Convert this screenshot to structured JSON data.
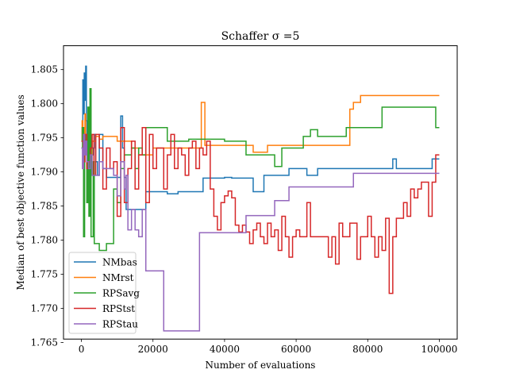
{
  "chart_data": {
    "type": "line",
    "title": "Schaffer σ =5",
    "xlabel": "Number of evaluations",
    "ylabel": "Median of best objective function values",
    "xlim": [
      -5000,
      105000
    ],
    "ylim": [
      1.7655,
      1.8085
    ],
    "xticks": [
      0,
      20000,
      40000,
      60000,
      80000,
      100000
    ],
    "xtick_labels": [
      "0",
      "20000",
      "40000",
      "60000",
      "80000",
      "100000"
    ],
    "yticks": [
      1.765,
      1.77,
      1.775,
      1.78,
      1.785,
      1.79,
      1.795,
      1.8,
      1.805
    ],
    "ytick_labels": [
      "1.765",
      "1.770",
      "1.775",
      "1.780",
      "1.785",
      "1.790",
      "1.795",
      "1.800",
      "1.805"
    ],
    "grid": false,
    "legend": "lower-left",
    "series": [
      {
        "name": "NMbas",
        "color": "#1f77b4",
        "x": [
          0,
          200,
          400,
          600,
          800,
          1000,
          1200,
          1400,
          1600,
          2000,
          2400,
          2800,
          3200,
          3600,
          4000,
          4500,
          5000,
          6000,
          7000,
          8000,
          9000,
          10000,
          11000,
          11500,
          12000,
          12500,
          13000,
          14000,
          15000,
          16000,
          17000,
          18000,
          20000,
          22000,
          24000,
          26000,
          27000,
          28000,
          30000,
          31000,
          32000,
          33000,
          34000,
          36000,
          38000,
          40000,
          42000,
          44000,
          46000,
          48000,
          50000,
          51000,
          52000,
          54000,
          56000,
          58000,
          60000,
          62000,
          63000,
          64000,
          66000,
          68000,
          70000,
          72000,
          74000,
          76000,
          78000,
          80000,
          82000,
          84000,
          86000,
          87000,
          88000,
          90000,
          92000,
          94000,
          96000,
          98000,
          100000
        ],
        "y": [
          1.7945,
          1.7965,
          1.8035,
          1.7985,
          1.8045,
          1.8005,
          1.8055,
          1.7975,
          1.7935,
          1.7915,
          1.7945,
          1.7925,
          1.7935,
          1.7955,
          1.7915,
          1.7895,
          1.7955,
          1.7905,
          1.7892,
          1.7892,
          1.7892,
          1.7892,
          1.7982,
          1.7935,
          1.7892,
          1.7845,
          1.7845,
          1.7845,
          1.7845,
          1.7845,
          1.7845,
          1.7871,
          1.7871,
          1.7871,
          1.7868,
          1.7868,
          1.7871,
          1.7871,
          1.7871,
          1.7871,
          1.7871,
          1.7871,
          1.7891,
          1.7891,
          1.7891,
          1.7892,
          1.7891,
          1.7891,
          1.7891,
          1.7871,
          1.7871,
          1.7895,
          1.7895,
          1.7895,
          1.7895,
          1.7905,
          1.7905,
          1.7905,
          1.7895,
          1.7895,
          1.7905,
          1.7905,
          1.7905,
          1.7905,
          1.7905,
          1.7905,
          1.7905,
          1.7905,
          1.7905,
          1.7905,
          1.7905,
          1.7919,
          1.7905,
          1.7905,
          1.7905,
          1.7905,
          1.7905,
          1.7919,
          1.7919
        ]
      },
      {
        "name": "NMrst",
        "color": "#ff7f0e",
        "x": [
          0,
          200,
          400,
          600,
          800,
          1000,
          1200,
          1400,
          1800,
          2200,
          2600,
          3000,
          4000,
          5000,
          6000,
          8000,
          10000,
          12000,
          14000,
          16000,
          18000,
          20000,
          22000,
          24000,
          26000,
          28000,
          30000,
          32000,
          33500,
          34500,
          36000,
          40000,
          44000,
          48000,
          52000,
          56000,
          60000,
          64000,
          68000,
          72000,
          74000,
          75000,
          76000,
          78000,
          80000,
          84000,
          88000,
          92000,
          96000,
          100000
        ],
        "y": [
          1.7945,
          1.7975,
          1.7935,
          1.7965,
          1.7955,
          1.7985,
          1.7945,
          1.7935,
          1.7915,
          1.7945,
          1.7925,
          1.7945,
          1.7952,
          1.7948,
          1.7952,
          1.7952,
          1.7945,
          1.7945,
          1.7935,
          1.7925,
          1.7925,
          1.7935,
          1.7935,
          1.7935,
          1.7935,
          1.7935,
          1.7935,
          1.7935,
          1.8002,
          1.7939,
          1.7939,
          1.7939,
          1.7939,
          1.7929,
          1.7939,
          1.7939,
          1.7939,
          1.7939,
          1.7939,
          1.7939,
          1.7939,
          1.7992,
          1.8002,
          1.8012,
          1.8012,
          1.8012,
          1.8012,
          1.8012,
          1.8012,
          1.8012
        ]
      },
      {
        "name": "RPSavg",
        "color": "#2ca02c",
        "x": [
          0,
          300,
          600,
          900,
          1200,
          1500,
          1800,
          2100,
          2400,
          2700,
          3000,
          3300,
          3600,
          4000,
          5000,
          6000,
          7000,
          8000,
          9000,
          10000,
          11000,
          12000,
          13000,
          14000,
          15000,
          16000,
          17000,
          18000,
          20000,
          22000,
          24000,
          26000,
          28000,
          30000,
          32000,
          36000,
          40000,
          44000,
          46000,
          48000,
          52000,
          54000,
          56000,
          60000,
          62000,
          64000,
          66000,
          70000,
          72000,
          74000,
          76000,
          80000,
          84000,
          88000,
          92000,
          96000,
          98000,
          99000,
          100000
        ],
        "y": [
          1.7935,
          1.7965,
          1.7805,
          1.7955,
          1.7935,
          1.7855,
          1.7995,
          1.7835,
          1.8022,
          1.7805,
          1.7805,
          1.7915,
          1.7795,
          1.7795,
          1.7785,
          1.7785,
          1.7795,
          1.7795,
          1.7875,
          1.7855,
          1.7905,
          1.7925,
          1.7925,
          1.7935,
          1.7905,
          1.7935,
          1.7925,
          1.7965,
          1.7965,
          1.7965,
          1.7945,
          1.7945,
          1.7945,
          1.7948,
          1.7948,
          1.7948,
          1.7945,
          1.7945,
          1.7925,
          1.7925,
          1.7925,
          1.7908,
          1.7935,
          1.7935,
          1.7952,
          1.7962,
          1.7952,
          1.7952,
          1.7952,
          1.7965,
          1.7965,
          1.7965,
          1.7995,
          1.7995,
          1.7995,
          1.7995,
          1.7995,
          1.7965,
          1.7965
        ]
      },
      {
        "name": "RPStst",
        "color": "#d62728",
        "x": [
          0,
          500,
          1000,
          1500,
          2000,
          2500,
          3000,
          3500,
          4000,
          5000,
          6000,
          7000,
          8000,
          9000,
          10000,
          11000,
          12000,
          13000,
          14000,
          15000,
          16000,
          17000,
          18000,
          19000,
          20000,
          21000,
          22000,
          23000,
          24000,
          25000,
          26000,
          27000,
          28000,
          29000,
          30000,
          31000,
          32000,
          33000,
          34000,
          35000,
          36000,
          37000,
          38000,
          39000,
          40000,
          41000,
          42000,
          43000,
          44000,
          45000,
          46000,
          47000,
          48000,
          49000,
          50000,
          51000,
          52000,
          53000,
          54000,
          55000,
          56000,
          57000,
          58000,
          59000,
          60000,
          61000,
          62000,
          63000,
          64000,
          65000,
          66000,
          67000,
          68000,
          69000,
          70000,
          71000,
          72000,
          73000,
          74000,
          75000,
          76000,
          77000,
          78000,
          79000,
          80000,
          81000,
          82000,
          83000,
          84000,
          85000,
          86000,
          87000,
          88000,
          89000,
          90000,
          91000,
          92000,
          93000,
          94000,
          95000,
          96000,
          97000,
          98000,
          99000,
          100000
        ],
        "y": [
          1.7945,
          1.7915,
          1.7955,
          1.7905,
          1.7915,
          1.7935,
          1.7955,
          1.7895,
          1.7955,
          1.7935,
          1.7875,
          1.7935,
          1.7905,
          1.7915,
          1.7835,
          1.7965,
          1.7855,
          1.7905,
          1.7945,
          1.7875,
          1.7925,
          1.7965,
          1.7855,
          1.7955,
          1.7905,
          1.7935,
          1.7935,
          1.7875,
          1.7925,
          1.7955,
          1.7905,
          1.7935,
          1.7925,
          1.7895,
          1.7935,
          1.7945,
          1.7905,
          1.7935,
          1.7925,
          1.7945,
          1.7875,
          1.7835,
          1.7815,
          1.7855,
          1.7865,
          1.7872,
          1.7862,
          1.7822,
          1.7812,
          1.7822,
          1.7812,
          1.7795,
          1.7815,
          1.7825,
          1.7805,
          1.7795,
          1.7825,
          1.7805,
          1.7815,
          1.7785,
          1.7835,
          1.7805,
          1.7775,
          1.7805,
          1.7815,
          1.7805,
          1.7805,
          1.7855,
          1.7805,
          1.7805,
          1.7805,
          1.7805,
          1.7805,
          1.7775,
          1.7805,
          1.7765,
          1.7825,
          1.7805,
          1.7805,
          1.7825,
          1.7825,
          1.7772,
          1.7805,
          1.7805,
          1.7835,
          1.7805,
          1.7775,
          1.7805,
          1.7785,
          1.7832,
          1.7722,
          1.7805,
          1.7832,
          1.7832,
          1.7855,
          1.7835,
          1.7875,
          1.7862,
          1.7875,
          1.7885,
          1.7885,
          1.7835,
          1.7885,
          1.7925,
          1.7925
        ]
      },
      {
        "name": "RPStau",
        "color": "#9467bd",
        "x": [
          0,
          300,
          600,
          900,
          1200,
          1500,
          2000,
          2500,
          3000,
          4000,
          5000,
          6000,
          7000,
          8000,
          9000,
          10000,
          11000,
          12000,
          12500,
          13000,
          14000,
          15000,
          16000,
          17000,
          18000,
          20000,
          22000,
          23000,
          24000,
          28000,
          32000,
          33000,
          34000,
          38000,
          40000,
          42000,
          44000,
          46000,
          48000,
          50000,
          52000,
          54000,
          56000,
          58000,
          60000,
          62000,
          64000,
          66000,
          68000,
          70000,
          72000,
          74000,
          76000,
          80000,
          84000,
          88000,
          92000,
          96000,
          100000
        ],
        "y": [
          1.7935,
          1.7905,
          1.7955,
          1.7925,
          1.7945,
          1.7915,
          1.7905,
          1.7925,
          1.7895,
          1.7895,
          1.7915,
          1.7905,
          1.7905,
          1.7905,
          1.7895,
          1.7865,
          1.7915,
          1.7875,
          1.7895,
          1.7815,
          1.7845,
          1.7815,
          1.7805,
          1.7845,
          1.7755,
          1.7755,
          1.7755,
          1.7667,
          1.7667,
          1.7667,
          1.7667,
          1.7811,
          1.7811,
          1.7811,
          1.7811,
          1.7811,
          1.7811,
          1.7836,
          1.7836,
          1.7836,
          1.7836,
          1.7858,
          1.7858,
          1.7878,
          1.7878,
          1.7878,
          1.7878,
          1.7878,
          1.7878,
          1.7878,
          1.7878,
          1.7878,
          1.7898,
          1.7898,
          1.7898,
          1.7898,
          1.7898,
          1.7898,
          1.7898
        ]
      }
    ]
  }
}
